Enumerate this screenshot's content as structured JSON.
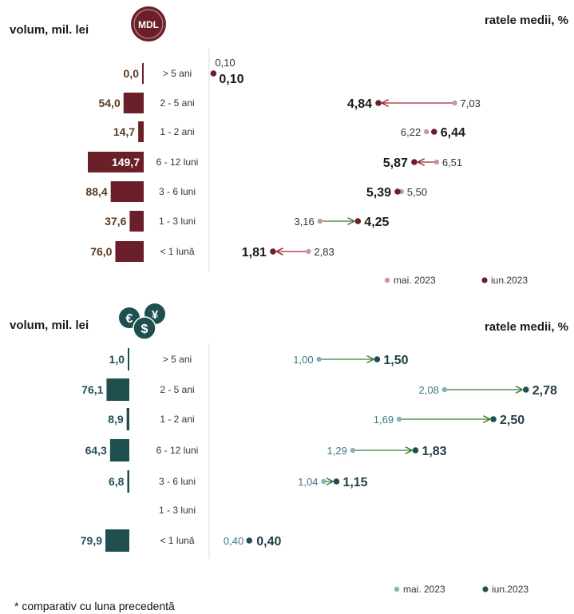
{
  "colors": {
    "mdl_bar": "#6b1f28",
    "mdl_prev": "#c49a9d",
    "mdl_curr": "#6b1f28",
    "fx_bar": "#1f4f4f",
    "fx_prev": "#8fb0b0",
    "fx_curr": "#1f4f4f",
    "arrow_up": "#3e7a3a",
    "arrow_down": "#a0262f",
    "vol_text_mdl": "#5a3a20",
    "vol_text_fx": "#1f4f5a"
  },
  "icons": {
    "mdl": "mdl-coin-icon",
    "fx": "currency-coins-icon"
  },
  "footnote": "* comparativ cu luna precedentă",
  "chart_data": [
    {
      "type": "bar+dot-arrow",
      "currency_badge": "MDL",
      "volume_label": "volum, mil. lei",
      "rates_label": "ratele medii, %",
      "categories": [
        "> 5 ani",
        "2 - 5 ani",
        "1 - 2 ani",
        "6 - 12 luni",
        "3 - 6 luni",
        "1 - 3 luni",
        "< 1 lună"
      ],
      "volume": [
        0.0,
        54.0,
        14.7,
        149.7,
        88.4,
        37.6,
        76.0
      ],
      "volume_labels": [
        "0,0",
        "54,0",
        "14,7",
        "149,7",
        "88,4",
        "37,6",
        "76,0"
      ],
      "series": [
        {
          "name": "mai. 2023",
          "values": [
            0.1,
            7.03,
            6.22,
            6.51,
            5.5,
            3.16,
            2.83
          ],
          "labels": [
            "0,10",
            "7,03",
            "6,22",
            "6,51",
            "5,50",
            "3,16",
            "2,83"
          ]
        },
        {
          "name": "iun.2023",
          "values": [
            0.1,
            4.84,
            6.44,
            5.87,
            5.39,
            4.25,
            1.81
          ],
          "labels": [
            "0,10",
            "4,84",
            "6,44",
            "5,87",
            "5,39",
            "4,25",
            "1,81"
          ]
        }
      ]
    },
    {
      "type": "bar+dot-arrow",
      "volume_label": "volum, mil. lei",
      "rates_label": "ratele medii, %",
      "categories": [
        "> 5 ani",
        "2 - 5 ani",
        "1 - 2 ani",
        "6 - 12 luni",
        "3 - 6 luni",
        "1 - 3 luni",
        "< 1 lună"
      ],
      "volume": [
        1.0,
        76.1,
        8.9,
        64.3,
        6.8,
        null,
        79.9
      ],
      "volume_labels": [
        "1,0",
        "76,1",
        "8,9",
        "64,3",
        "6,8",
        "",
        "79,9"
      ],
      "series": [
        {
          "name": "mai. 2023",
          "values": [
            1.0,
            2.08,
            1.69,
            1.29,
            1.04,
            null,
            0.4
          ],
          "labels": [
            "1,00",
            "2,08",
            "1,69",
            "1,29",
            "1,04",
            "",
            "0,40"
          ]
        },
        {
          "name": "iun.2023",
          "values": [
            1.5,
            2.78,
            2.5,
            1.83,
            1.15,
            null,
            0.4
          ],
          "labels": [
            "1,50",
            "2,78",
            "2,50",
            "1,83",
            "1,15",
            "",
            "0,40"
          ]
        }
      ]
    }
  ]
}
